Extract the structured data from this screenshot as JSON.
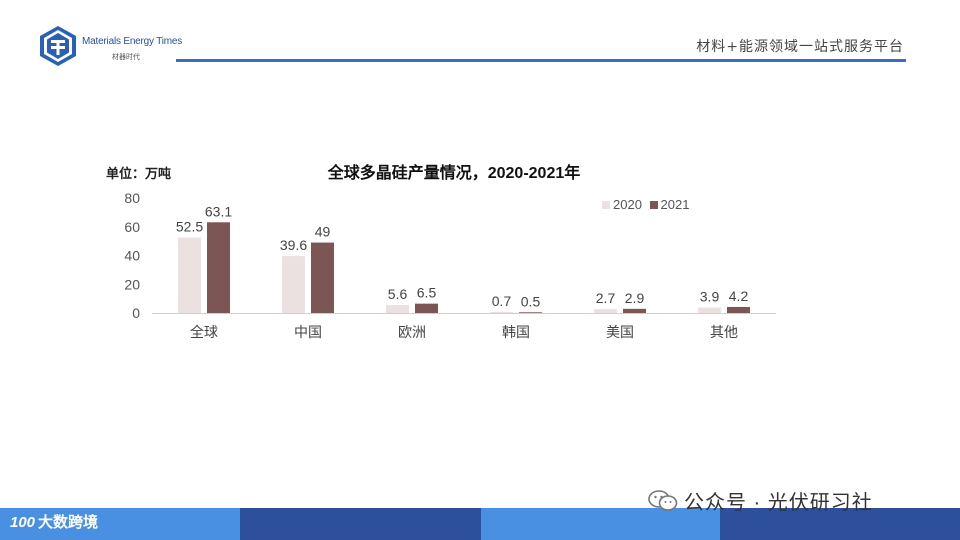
{
  "header": {
    "brand_en": "Materials Energy Times",
    "brand_cn": "材器时代",
    "tagline": "材料+能源领域一站式服务平台"
  },
  "chart_unit": "单位：万吨",
  "legend": [
    "2020",
    "2021"
  ],
  "colors": {
    "series_2020": "#ebe1e1",
    "series_2021": "#7c5555",
    "header_line": "#3b6bbf"
  },
  "chart_data": {
    "type": "bar",
    "title": "全球多晶硅产量情况，2020-2021年",
    "xlabel": "",
    "ylabel": "单位：万吨",
    "ylim": [
      0,
      80
    ],
    "yticks": [
      0,
      20,
      40,
      60,
      80
    ],
    "categories": [
      "全球",
      "中国",
      "欧洲",
      "韩国",
      "美国",
      "其他"
    ],
    "series": [
      {
        "name": "2020",
        "values": [
          52.5,
          39.6,
          5.6,
          0.7,
          2.7,
          3.9
        ]
      },
      {
        "name": "2021",
        "values": [
          63.1,
          49,
          6.5,
          0.5,
          2.9,
          4.2
        ]
      }
    ],
    "data_labels": [
      [
        "52.5",
        "39.6",
        "5.6",
        "0.7",
        "2.7",
        "3.9"
      ],
      [
        "63.1",
        "49",
        "6.5",
        "0.5",
        "2.9",
        "4.2"
      ]
    ],
    "grid": false,
    "legend_position": "top-right"
  },
  "footer": {
    "brand_mark": "100",
    "brand_name": "大数跨境",
    "wechat": "公众号 · 光伏研习社"
  }
}
